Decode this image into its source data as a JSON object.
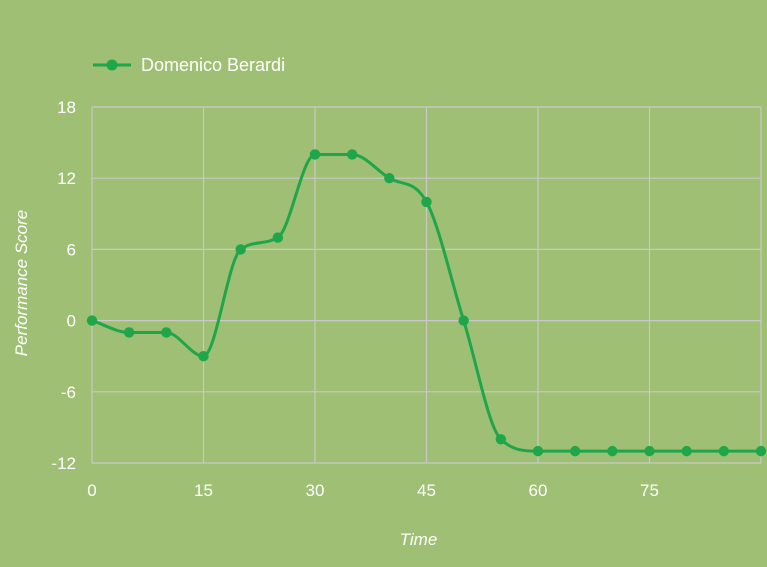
{
  "colors": {
    "background": "#9ebf74",
    "series": "#1fa64a",
    "grid": "#c9c9c9",
    "text": "#ffffff"
  },
  "chart_data": {
    "type": "line",
    "title": "",
    "xlabel": "Time",
    "ylabel": "Performance Score",
    "xlim": [
      0,
      90
    ],
    "ylim": [
      -12,
      18
    ],
    "x_ticks": [
      0,
      15,
      30,
      45,
      60,
      75
    ],
    "y_ticks": [
      -12,
      -6,
      0,
      6,
      12,
      18
    ],
    "grid": true,
    "legend_position": "top-left",
    "smooth": true,
    "series": [
      {
        "name": "Domenico Berardi",
        "color": "#1fa64a",
        "x": [
          0,
          5,
          10,
          15,
          20,
          25,
          30,
          35,
          40,
          45,
          50,
          55,
          60,
          65,
          70,
          75,
          80,
          85,
          90
        ],
        "y": [
          0,
          -1,
          -1,
          -3,
          6,
          7,
          14,
          14,
          12,
          10,
          0,
          -10,
          -11,
          -11,
          -11,
          -11,
          -11,
          -11,
          -11
        ]
      }
    ]
  }
}
